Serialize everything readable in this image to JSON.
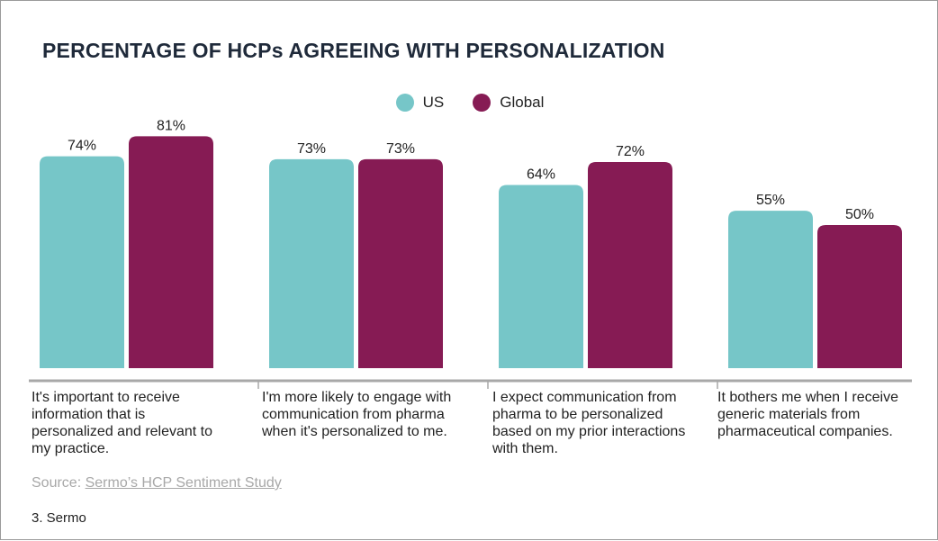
{
  "chart_data": {
    "type": "bar",
    "title": "PERCENTAGE OF HCPs AGREEING WITH PERSONALIZATION",
    "categories": [
      "It's important to receive information that is personalized and relevant to my practice.",
      "I'm more likely to engage with communication from pharma when it's personalized to me.",
      "I expect communication from pharma to be personalized based on my prior interactions with them.",
      "It bothers me when I receive generic materials from pharmaceutical companies."
    ],
    "series": [
      {
        "name": "US",
        "values": [
          74,
          73,
          64,
          55
        ],
        "labels": [
          "74%",
          "73%",
          "64%",
          "55%"
        ],
        "color": "#76c6c8"
      },
      {
        "name": "Global",
        "values": [
          81,
          73,
          72,
          50
        ],
        "labels": [
          "81%",
          "73%",
          "72%",
          "50%"
        ],
        "color": "#861b54"
      }
    ],
    "ylim": [
      0,
      100
    ],
    "grid": false,
    "legend": "top-center"
  },
  "source": {
    "prefix": "Source: ",
    "link_text": "Sermo’s HCP Sentiment Study"
  },
  "footnote": "3. Sermo",
  "colors": {
    "axis": "#a8a8a8",
    "title": "#1f2a3a"
  }
}
